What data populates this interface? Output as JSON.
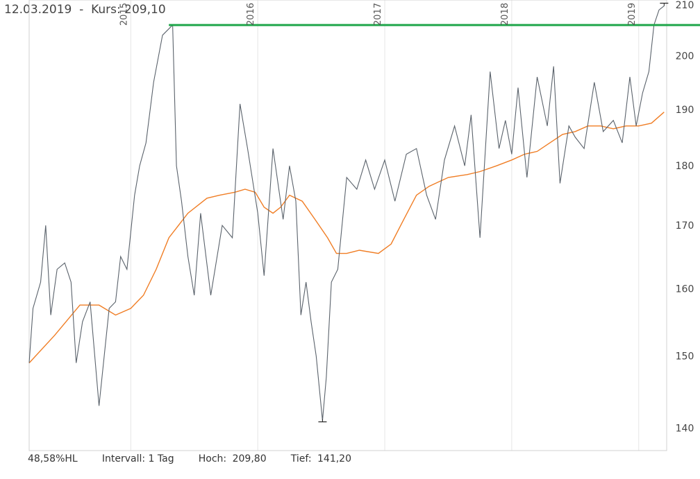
{
  "header": {
    "date": "12.03.2019",
    "separator": "-",
    "kurs_label": "Kurs:",
    "kurs_value": "209,10"
  },
  "footer": {
    "hl": "48,58%HL",
    "interval": "Intervall: 1 Tag",
    "hoch_label": "Hoch:",
    "hoch_value": "209,80",
    "tief_label": "Tief:",
    "tief_value": "141,20"
  },
  "chart_data": {
    "type": "line",
    "x_tick_labels": [
      "2015",
      "2016",
      "2017",
      "2018",
      "2019"
    ],
    "y_tick_labels": [
      "140",
      "150",
      "160",
      "170",
      "180",
      "190",
      "200",
      "210"
    ],
    "ylim": [
      137,
      211
    ],
    "xlim": [
      2014.2,
      2019.22
    ],
    "y_scale": "log",
    "grid": "vertical",
    "colors": {
      "price": "#5a626b",
      "average": "#f07d24",
      "resistance": "#1fa64a",
      "grid": "#e6e6e6"
    },
    "resistance_level": 206.0,
    "resistance_start": 2015.3,
    "high_marker": {
      "x": 2019.2,
      "y": 209.8
    },
    "low_marker": {
      "x": 2016.51,
      "y": 141.2
    },
    "series": [
      {
        "role": "price",
        "x": [
          2014.2,
          2014.23,
          2014.29,
          2014.33,
          2014.37,
          2014.42,
          2014.48,
          2014.53,
          2014.57,
          2014.62,
          2014.68,
          2014.75,
          2014.83,
          2014.88,
          2014.92,
          2014.97,
          2015.03,
          2015.07,
          2015.12,
          2015.18,
          2015.25,
          2015.33,
          2015.36,
          2015.4,
          2015.45,
          2015.5,
          2015.55,
          2015.63,
          2015.72,
          2015.8,
          2015.86,
          2015.92,
          2016.0,
          2016.05,
          2016.12,
          2016.2,
          2016.25,
          2016.3,
          2016.34,
          2016.38,
          2016.42,
          2016.46,
          2016.51,
          2016.54,
          2016.58,
          2016.63,
          2016.7,
          2016.78,
          2016.85,
          2016.92,
          2017.0,
          2017.08,
          2017.17,
          2017.25,
          2017.33,
          2017.4,
          2017.47,
          2017.55,
          2017.63,
          2017.68,
          2017.75,
          2017.83,
          2017.9,
          2017.95,
          2018.0,
          2018.05,
          2018.12,
          2018.2,
          2018.28,
          2018.33,
          2018.38,
          2018.45,
          2018.5,
          2018.57,
          2018.65,
          2018.72,
          2018.8,
          2018.87,
          2018.93,
          2018.98,
          2019.03,
          2019.08,
          2019.12,
          2019.16,
          2019.2
        ],
        "y": [
          149,
          157,
          161,
          170,
          156,
          163,
          164,
          161,
          149,
          155,
          158,
          143,
          157,
          158,
          165,
          163,
          175,
          180,
          184,
          195,
          204,
          206,
          180,
          174,
          165,
          159,
          172,
          159,
          170,
          168,
          191,
          183,
          172,
          162,
          183,
          171,
          180,
          174,
          156,
          161,
          155,
          150,
          141,
          147,
          161,
          163,
          178,
          176,
          181,
          176,
          181,
          174,
          182,
          183,
          175,
          171,
          181,
          187,
          180,
          189,
          168,
          197,
          183,
          188,
          182,
          194,
          178,
          196,
          187,
          198,
          177,
          187,
          185,
          183,
          195,
          186,
          188,
          184,
          196,
          187,
          193,
          197,
          206,
          209,
          209.8
        ]
      },
      {
        "role": "average",
        "x": [
          2014.2,
          2014.4,
          2014.6,
          2014.75,
          2014.88,
          2015.0,
          2015.1,
          2015.2,
          2015.3,
          2015.45,
          2015.6,
          2015.7,
          2015.82,
          2015.9,
          2015.98,
          2016.05,
          2016.12,
          2016.18,
          2016.25,
          2016.35,
          2016.45,
          2016.55,
          2016.62,
          2016.7,
          2016.8,
          2016.95,
          2017.05,
          2017.15,
          2017.25,
          2017.35,
          2017.5,
          2017.65,
          2017.75,
          2017.88,
          2018.0,
          2018.1,
          2018.2,
          2018.3,
          2018.4,
          2018.5,
          2018.6,
          2018.7,
          2018.8,
          2018.9,
          2019.0,
          2019.1,
          2019.2
        ],
        "y": [
          149,
          153,
          157.5,
          157.5,
          156,
          157,
          159,
          163,
          168,
          172,
          174.5,
          175,
          175.5,
          176,
          175.5,
          173,
          172,
          173,
          175,
          174,
          171,
          168,
          165.5,
          165.5,
          166,
          165.5,
          167,
          171,
          175,
          176.5,
          178,
          178.5,
          179,
          180,
          181,
          182,
          182.5,
          184,
          185.5,
          186,
          187,
          187,
          186.5,
          187,
          187,
          187.5,
          189.5
        ]
      }
    ]
  }
}
